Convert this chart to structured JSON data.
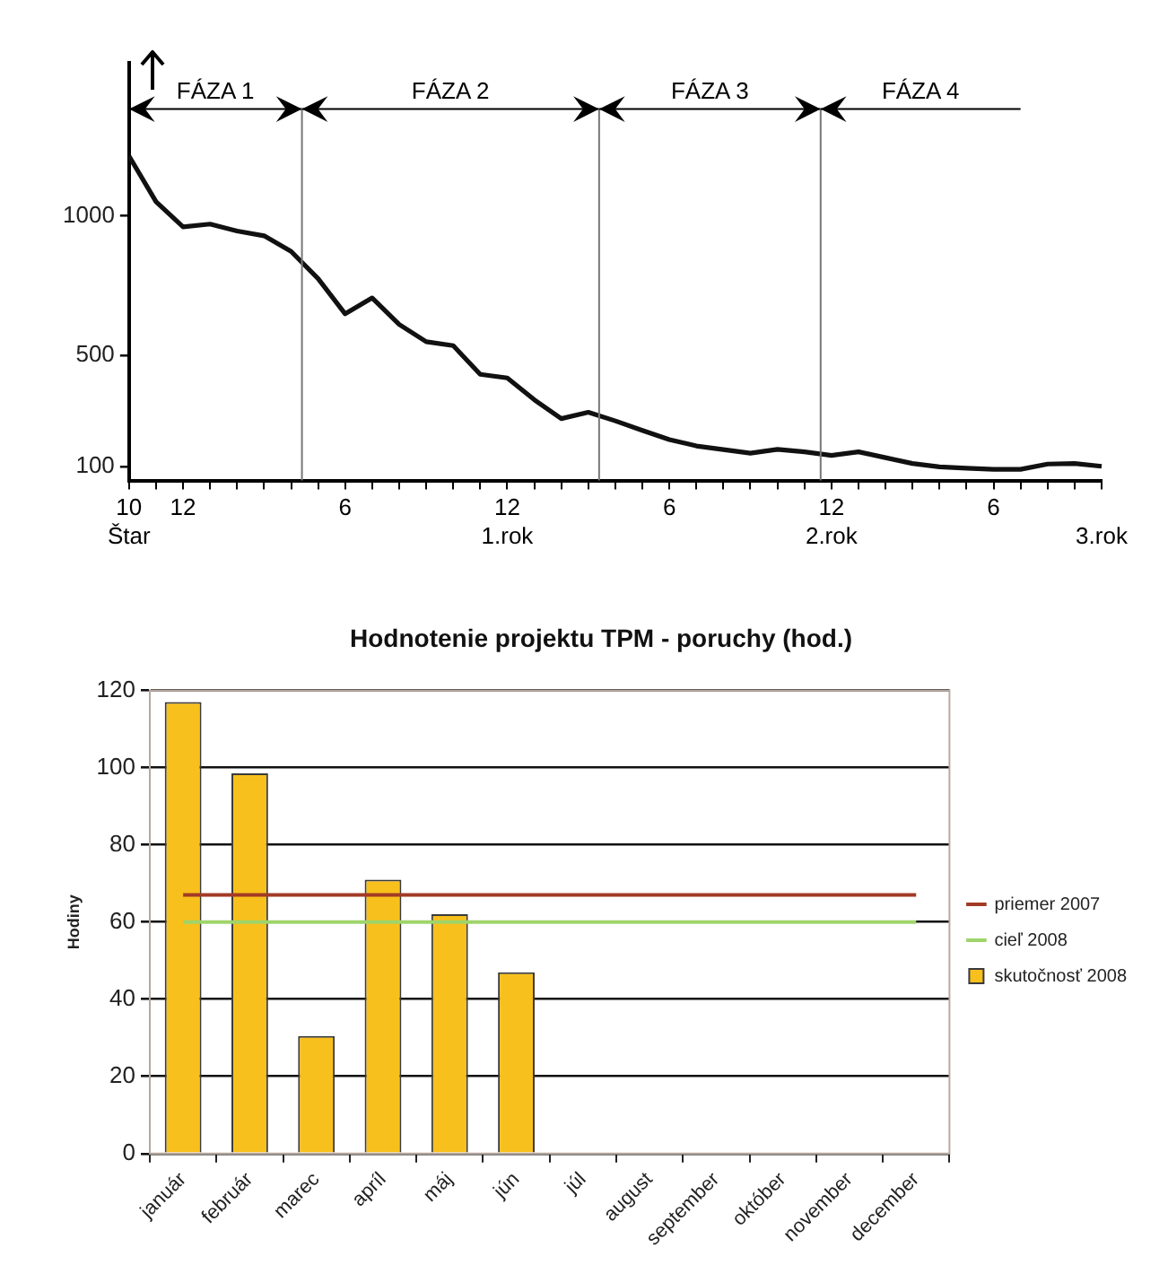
{
  "chart_data": [
    {
      "type": "line",
      "categories": [
        "10\nŠtar",
        null,
        "12",
        null,
        null,
        null,
        null,
        null,
        "6",
        null,
        null,
        null,
        null,
        null,
        "12\n1.rok",
        null,
        null,
        null,
        null,
        null,
        "6",
        null,
        null,
        null,
        null,
        null,
        "12\n2.rok",
        null,
        null,
        null,
        null,
        null,
        "6",
        null,
        null,
        null,
        "\n3.rok"
      ],
      "series": [
        {
          "color": "#111111",
          "values": [
            1214,
            1050,
            960,
            970,
            945,
            928,
            872,
            774,
            648,
            705,
            610,
            548,
            534,
            431,
            418,
            340,
            272,
            295,
            264,
            230,
            197,
            174,
            161,
            148,
            162,
            153,
            140,
            153,
            132,
            111,
            99,
            94,
            90,
            90,
            109,
            111,
            101
          ]
        }
      ],
      "ylim": [
        50,
        1550
      ],
      "yticks": [
        100,
        500,
        1000
      ],
      "annotations": [
        "FÁZA 1",
        "FÁZA 2",
        "FÁZA 3",
        "FÁZA 4"
      ],
      "grid": false,
      "legend": false,
      "marker": "none",
      "line_style": "solid"
    },
    {
      "type": "bar",
      "title": "Hodnotenie projektu TPM - poruchy (hod.)",
      "ylabel": "Hodiny",
      "categories": [
        "január",
        "február",
        "marec",
        "apríl",
        "máj",
        "jún",
        "júl",
        "august",
        "september",
        "október",
        "november",
        "december"
      ],
      "series": [
        {
          "name": "skutočnosť 2008",
          "color": "#f8c01c",
          "values": [
            117,
            98.5,
            30.5,
            71,
            62,
            47,
            null,
            null,
            null,
            null,
            null,
            null
          ]
        },
        {
          "name": "priemer 2007",
          "type": "line",
          "color": "#a23b25",
          "values": [
            67,
            67,
            67,
            67,
            67,
            67,
            67,
            67,
            67,
            67,
            67,
            67
          ]
        },
        {
          "name": "cieľ 2008",
          "type": "line",
          "color": "#9fd46a",
          "values": [
            60,
            60,
            60,
            60,
            60,
            60,
            60,
            60,
            60,
            60,
            60,
            60
          ]
        }
      ],
      "ylim": [
        0,
        120
      ],
      "yticks": [
        0,
        20,
        40,
        60,
        80,
        100,
        120
      ],
      "grid": "y",
      "legend": "right",
      "marker": "none",
      "line_style": "solid"
    }
  ]
}
